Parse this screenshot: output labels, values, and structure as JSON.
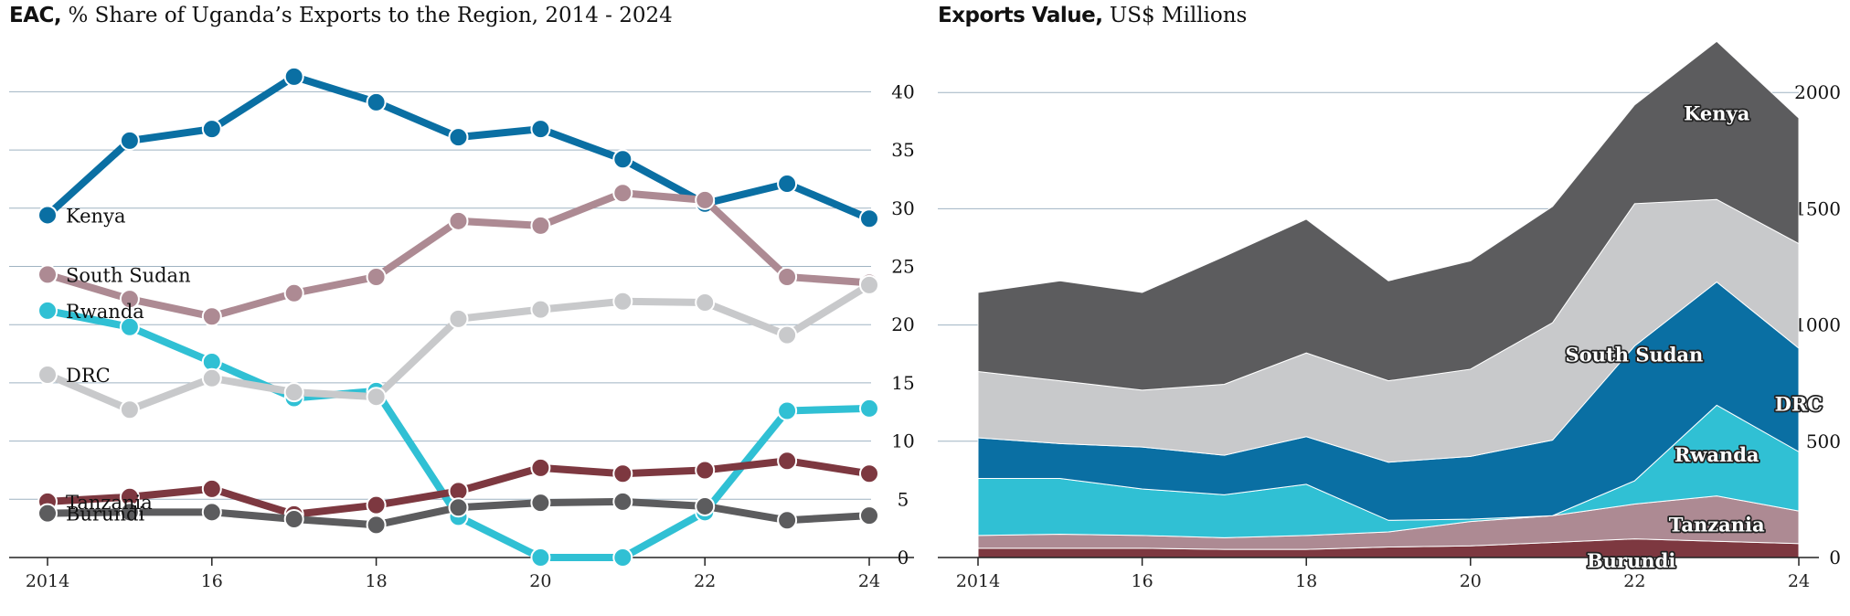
{
  "chart_data": [
    {
      "type": "line",
      "title_bold": "EAC,",
      "title_rest": " % Share of Uganda’s Exports to the Region, 2014 - 2024",
      "x": [
        2014,
        2015,
        2016,
        2017,
        2018,
        2019,
        2020,
        2021,
        2022,
        2023,
        2024
      ],
      "x_tick_values": [
        2014,
        2016,
        2018,
        2020,
        2022,
        2024
      ],
      "x_tick_labels": [
        "2014",
        "16",
        "18",
        "20",
        "22",
        "24"
      ],
      "ylim": [
        0,
        42
      ],
      "y_ticks": [
        0,
        5,
        10,
        15,
        20,
        25,
        30,
        35,
        40
      ],
      "y_tick_labels": [
        "0",
        "5",
        "10",
        "15",
        "20",
        "25",
        "30",
        "35",
        "40"
      ],
      "grid": true,
      "series": [
        {
          "name": "Kenya",
          "color": "#0a6fa3",
          "values": [
            29.4,
            35.8,
            36.8,
            41.3,
            39.1,
            36.1,
            36.8,
            34.2,
            30.4,
            32.1,
            29.1
          ]
        },
        {
          "name": "South Sudan",
          "color": "#ad8a93",
          "values": [
            24.3,
            22.2,
            20.7,
            22.7,
            24.1,
            28.9,
            28.5,
            31.3,
            30.7,
            24.1,
            23.6
          ]
        },
        {
          "name": "Rwanda",
          "color": "#30c0d4",
          "values": [
            21.2,
            19.8,
            16.8,
            13.7,
            14.3,
            3.5,
            0.0,
            0.0,
            3.9,
            12.6,
            12.8
          ]
        },
        {
          "name": "DRC",
          "color": "#c8c9cb",
          "values": [
            15.7,
            12.7,
            15.4,
            14.2,
            13.8,
            20.5,
            21.3,
            22.0,
            21.9,
            19.1,
            23.4
          ]
        },
        {
          "name": "Tanzania",
          "color": "#7d3840",
          "values": [
            4.8,
            5.2,
            5.9,
            3.7,
            4.5,
            5.7,
            7.7,
            7.2,
            7.5,
            8.3,
            7.2
          ]
        },
        {
          "name": "Burundi",
          "color": "#5c5c5e",
          "values": [
            3.8,
            3.9,
            3.9,
            3.3,
            2.8,
            4.3,
            4.7,
            4.8,
            4.4,
            3.2,
            3.6
          ]
        }
      ]
    },
    {
      "type": "area",
      "title_bold": "Exports Value,",
      "title_rest": " US$ Millions",
      "x": [
        2014,
        2015,
        2016,
        2017,
        2018,
        2019,
        2020,
        2021,
        2022,
        2023,
        2024
      ],
      "x_tick_values": [
        2014,
        2016,
        2018,
        2020,
        2022,
        2024
      ],
      "x_tick_labels": [
        "2014",
        "16",
        "18",
        "20",
        "22",
        "24"
      ],
      "ylim": [
        0,
        2250
      ],
      "y_ticks": [
        0,
        500,
        1000,
        1500,
        2000
      ],
      "y_tick_labels": [
        "0",
        "500",
        "1000",
        "1500",
        "2000"
      ],
      "grid": true,
      "stacked": true,
      "series": [
        {
          "name": "Burundi",
          "color": "#7d3840",
          "values": [
            40,
            40,
            40,
            35,
            35,
            45,
            50,
            65,
            80,
            70,
            60
          ]
        },
        {
          "name": "Tanzania",
          "color": "#ad8a93",
          "values": [
            55,
            60,
            55,
            50,
            60,
            65,
            105,
            115,
            150,
            195,
            140
          ]
        },
        {
          "name": "Rwanda",
          "color": "#30c0d4",
          "values": [
            245,
            240,
            200,
            185,
            220,
            50,
            10,
            0,
            100,
            390,
            255
          ]
        },
        {
          "name": "DRC",
          "color": "#0a6fa3",
          "values": [
            175,
            150,
            180,
            170,
            205,
            250,
            270,
            325,
            580,
            530,
            445
          ]
        },
        {
          "name": "South Sudan",
          "color": "#c8c9cb",
          "values": [
            285,
            270,
            245,
            305,
            360,
            350,
            375,
            505,
            612,
            355,
            450
          ]
        },
        {
          "name": "Kenya",
          "color": "#5c5c5e",
          "values": [
            340,
            430,
            420,
            550,
            575,
            430,
            466,
            500,
            425,
            680,
            540
          ]
        }
      ]
    }
  ]
}
